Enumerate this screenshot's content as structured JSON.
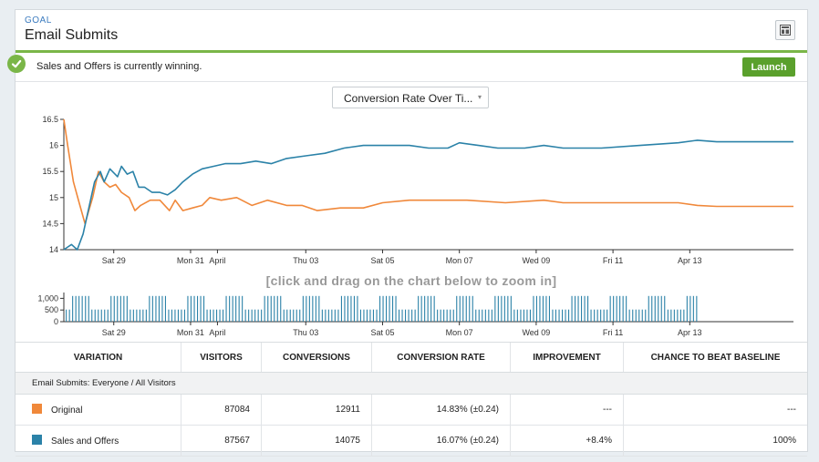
{
  "goal": {
    "label": "GOAL",
    "title": "Email Submits",
    "icon": "layout-toggle-icon"
  },
  "banner": {
    "message": "Sales and Offers is currently winning.",
    "launch_label": "Launch",
    "icon": "check-circle-icon"
  },
  "colors": {
    "accent_green": "#7ab648",
    "original": "#f0883a",
    "sales_and_offers": "#2b82a8"
  },
  "chart_selector": {
    "label": "Conversion Rate Over Ti...",
    "caret": "▾"
  },
  "zoom_hint": "[click and drag on the chart below to zoom in]",
  "chart_data": [
    {
      "type": "line",
      "ylim": [
        14,
        16.5
      ],
      "y_ticks": [
        "16.5",
        "16",
        "15.5",
        "15",
        "14.5",
        "14"
      ],
      "x_tick_labels": [
        "Sat 29",
        "Mon 31",
        "April",
        "Thu 03",
        "Sat 05",
        "Mon 07",
        "Wed 09",
        "Fri 11",
        "Apr 13"
      ],
      "x_range_days": [
        0,
        19
      ],
      "x_tick_days": [
        1.3,
        3.3,
        4.0,
        6.3,
        8.3,
        10.3,
        12.3,
        14.3,
        16.3
      ],
      "grid": false,
      "series": [
        {
          "color": "#f0883a",
          "points": [
            [
              0,
              16.5
            ],
            [
              0.1,
              16.0
            ],
            [
              0.25,
              15.3
            ],
            [
              0.4,
              14.9
            ],
            [
              0.55,
              14.5
            ],
            [
              0.75,
              15.0
            ],
            [
              0.9,
              15.5
            ],
            [
              1.05,
              15.3
            ],
            [
              1.2,
              15.2
            ],
            [
              1.35,
              15.25
            ],
            [
              1.5,
              15.1
            ],
            [
              1.7,
              15.0
            ],
            [
              1.85,
              14.75
            ],
            [
              2.0,
              14.85
            ],
            [
              2.25,
              14.95
            ],
            [
              2.5,
              14.95
            ],
            [
              2.75,
              14.75
            ],
            [
              2.9,
              14.95
            ],
            [
              3.1,
              14.75
            ],
            [
              3.35,
              14.8
            ],
            [
              3.6,
              14.85
            ],
            [
              3.8,
              15.0
            ],
            [
              4.1,
              14.95
            ],
            [
              4.5,
              15.0
            ],
            [
              4.9,
              14.85
            ],
            [
              5.3,
              14.95
            ],
            [
              5.8,
              14.85
            ],
            [
              6.2,
              14.85
            ],
            [
              6.6,
              14.75
            ],
            [
              7.2,
              14.8
            ],
            [
              7.8,
              14.8
            ],
            [
              8.3,
              14.9
            ],
            [
              9.0,
              14.95
            ],
            [
              10.0,
              14.95
            ],
            [
              10.5,
              14.95
            ],
            [
              11.5,
              14.9
            ],
            [
              12.5,
              14.95
            ],
            [
              13.0,
              14.9
            ],
            [
              14.0,
              14.9
            ],
            [
              15.0,
              14.9
            ],
            [
              16.0,
              14.9
            ],
            [
              16.5,
              14.85
            ],
            [
              17.0,
              14.83
            ],
            [
              19.0,
              14.83
            ]
          ]
        },
        {
          "color": "#2b82a8",
          "points": [
            [
              0,
              14.0
            ],
            [
              0.1,
              14.05
            ],
            [
              0.2,
              14.1
            ],
            [
              0.35,
              14.0
            ],
            [
              0.5,
              14.3
            ],
            [
              0.65,
              14.8
            ],
            [
              0.8,
              15.3
            ],
            [
              0.95,
              15.5
            ],
            [
              1.05,
              15.3
            ],
            [
              1.2,
              15.55
            ],
            [
              1.4,
              15.4
            ],
            [
              1.5,
              15.6
            ],
            [
              1.65,
              15.45
            ],
            [
              1.8,
              15.5
            ],
            [
              1.95,
              15.2
            ],
            [
              2.1,
              15.2
            ],
            [
              2.3,
              15.1
            ],
            [
              2.5,
              15.1
            ],
            [
              2.7,
              15.05
            ],
            [
              2.9,
              15.15
            ],
            [
              3.1,
              15.3
            ],
            [
              3.35,
              15.45
            ],
            [
              3.6,
              15.55
            ],
            [
              3.9,
              15.6
            ],
            [
              4.2,
              15.65
            ],
            [
              4.6,
              15.65
            ],
            [
              5.0,
              15.7
            ],
            [
              5.4,
              15.65
            ],
            [
              5.8,
              15.75
            ],
            [
              6.3,
              15.8
            ],
            [
              6.8,
              15.85
            ],
            [
              7.3,
              15.95
            ],
            [
              7.8,
              16.0
            ],
            [
              8.3,
              16.0
            ],
            [
              9.0,
              16.0
            ],
            [
              9.5,
              15.95
            ],
            [
              10.0,
              15.95
            ],
            [
              10.3,
              16.05
            ],
            [
              10.8,
              16.0
            ],
            [
              11.3,
              15.95
            ],
            [
              12.0,
              15.95
            ],
            [
              12.5,
              16.0
            ],
            [
              13.0,
              15.95
            ],
            [
              14.0,
              15.95
            ],
            [
              15.0,
              16.0
            ],
            [
              16.0,
              16.05
            ],
            [
              16.5,
              16.1
            ],
            [
              17.0,
              16.07
            ],
            [
              19.0,
              16.07
            ]
          ]
        }
      ]
    },
    {
      "type": "bar",
      "ylim": [
        0,
        1250
      ],
      "y_ticks": [
        "1,000",
        "500",
        "0"
      ],
      "x_tick_labels": [
        "Sat 29",
        "Mon 31",
        "April",
        "Thu 03",
        "Sat 05",
        "Mon 07",
        "Wed 09",
        "Fri 11",
        "Apr 13"
      ],
      "x_range_days": [
        0,
        19
      ],
      "note_pattern": "daily cycles of higher and lower hourly visitors",
      "cycle_days": 1.0,
      "high_value": 1100,
      "low_value": 520,
      "end_day": 16.5,
      "color": "#2b82a8"
    }
  ],
  "table": {
    "headers": [
      "VARIATION",
      "VISITORS",
      "CONVERSIONS",
      "CONVERSION RATE",
      "IMPROVEMENT",
      "CHANCE TO BEAT BASELINE"
    ],
    "group_label": "Email Submits: Everyone / All Visitors",
    "rows": [
      {
        "variation": "Original",
        "visitors": "87084",
        "conversions": "12911",
        "conversion_rate": "14.83% (±0.24)",
        "improvement": "---",
        "chance": "---",
        "color": "#f0883a"
      },
      {
        "variation": "Sales and Offers",
        "visitors": "87567",
        "conversions": "14075",
        "conversion_rate": "16.07% (±0.24)",
        "improvement": "+8.4%",
        "chance": "100%",
        "color": "#2b82a8"
      }
    ]
  }
}
